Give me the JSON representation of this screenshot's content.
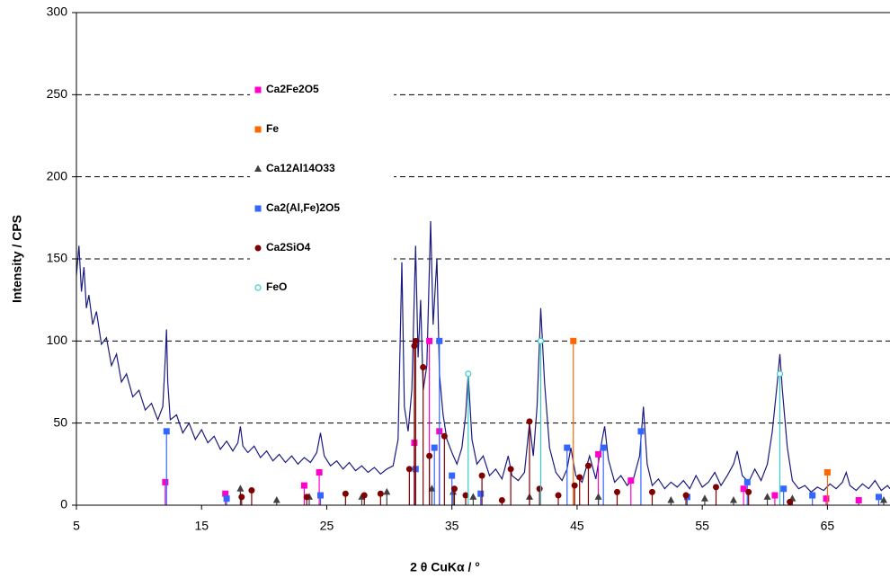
{
  "chart_data": {
    "type": "line",
    "xlabel": "2 θ CuKα / °",
    "ylabel": "Intensity / CPS",
    "xlim": [
      5,
      70
    ],
    "xticks": [
      5,
      15,
      25,
      35,
      45,
      55,
      65
    ],
    "ylim": [
      0,
      300
    ],
    "yticks": [
      0,
      50,
      100,
      150,
      200,
      250,
      300
    ],
    "grid": true,
    "series": [
      {
        "kind": "line",
        "color": "#1a1a80",
        "x": [
          5,
          5.2,
          5.4,
          5.6,
          5.8,
          6,
          6.3,
          6.6,
          7,
          7.4,
          7.8,
          8.2,
          8.6,
          9,
          9.5,
          10,
          10.5,
          11,
          11.5,
          11.9,
          12.1,
          12.2,
          12.3,
          12.5,
          13,
          13.5,
          14,
          14.5,
          15,
          15.5,
          16,
          16.5,
          17,
          17.5,
          17.9,
          18.1,
          18.3,
          18.7,
          19.2,
          19.7,
          20.2,
          20.7,
          21.2,
          21.7,
          22.2,
          22.7,
          23.2,
          23.7,
          24.2,
          24.5,
          24.8,
          25.3,
          25.8,
          26.3,
          26.8,
          27.3,
          27.8,
          28.3,
          28.8,
          29.3,
          29.8,
          30.3,
          30.7,
          31.0,
          31.2,
          31.5,
          31.8,
          32.1,
          32.3,
          32.5,
          32.7,
          33.0,
          33.3,
          33.5,
          33.8,
          34.0,
          34.3,
          34.6,
          35.0,
          35.4,
          35.8,
          36.1,
          36.3,
          36.6,
          37.0,
          37.5,
          38.0,
          38.5,
          39.0,
          39.5,
          39.8,
          40.3,
          40.8,
          41.2,
          41.5,
          41.8,
          42.1,
          42.4,
          42.8,
          43.3,
          43.8,
          44.2,
          44.5,
          44.9,
          45.4,
          46.0,
          46.5,
          47.0,
          47.2,
          47.5,
          48.0,
          48.5,
          49.0,
          49.5,
          50.0,
          50.3,
          50.6,
          51.0,
          51.5,
          52.0,
          52.5,
          53.0,
          53.5,
          54.0,
          54.5,
          55.0,
          55.5,
          56.0,
          56.5,
          57.0,
          57.5,
          57.8,
          58.2,
          58.7,
          59.2,
          59.7,
          60.2,
          60.6,
          61.0,
          61.2,
          61.4,
          61.8,
          62.2,
          62.7,
          63.2,
          63.7,
          64.2,
          64.7,
          65.2,
          65.7,
          66.2,
          66.5,
          66.8,
          67.3,
          67.8,
          68.3,
          68.8,
          69.3,
          69.8,
          70
        ],
        "values": [
          140,
          158,
          130,
          145,
          120,
          128,
          110,
          118,
          98,
          102,
          85,
          92,
          75,
          80,
          66,
          70,
          58,
          62,
          52,
          60,
          90,
          107,
          75,
          52,
          55,
          44,
          50,
          40,
          46,
          38,
          42,
          34,
          39,
          33,
          38,
          48,
          36,
          32,
          36,
          29,
          33,
          27,
          31,
          26,
          30,
          25,
          29,
          26,
          32,
          44,
          30,
          24,
          27,
          22,
          26,
          21,
          24,
          20,
          23,
          19,
          22,
          24,
          40,
          148,
          60,
          45,
          70,
          158,
          90,
          125,
          70,
          85,
          173,
          110,
          150,
          80,
          55,
          40,
          32,
          25,
          35,
          55,
          80,
          40,
          25,
          30,
          18,
          22,
          16,
          30,
          18,
          15,
          20,
          50,
          30,
          60,
          120,
          75,
          35,
          20,
          15,
          22,
          35,
          18,
          14,
          30,
          16,
          40,
          48,
          28,
          14,
          18,
          12,
          16,
          30,
          60,
          25,
          12,
          16,
          10,
          14,
          11,
          15,
          10,
          18,
          11,
          14,
          20,
          12,
          18,
          25,
          33,
          18,
          14,
          22,
          15,
          25,
          45,
          75,
          92,
          70,
          35,
          15,
          10,
          12,
          8,
          11,
          9,
          13,
          10,
          14,
          20,
          12,
          9,
          13,
          10,
          15,
          9,
          12,
          10
        ]
      },
      {
        "kind": "stick",
        "name": "Ca2Fe2O5",
        "color": "#ff00cc",
        "marker": "square",
        "x": [
          12.1,
          16.9,
          23.2,
          24.4,
          32.0,
          33.2,
          34.0,
          46.7,
          49.3,
          58.3,
          60.8,
          64.9,
          67.5
        ],
        "values": [
          14,
          7,
          12,
          20,
          38,
          100,
          45,
          31,
          15,
          10,
          6,
          4,
          3
        ]
      },
      {
        "kind": "stick",
        "name": "Fe",
        "color": "#ff6600",
        "marker": "square",
        "x": [
          44.7,
          65.0
        ],
        "values": [
          100,
          20
        ]
      },
      {
        "kind": "stick",
        "name": "Ca12Al14O33",
        "color": "#404040",
        "marker": "triangle",
        "x": [
          18.1,
          21.0,
          23.6,
          27.8,
          29.8,
          33.4,
          35.1,
          36.7,
          41.2,
          46.7,
          52.5,
          55.2,
          57.5,
          60.2,
          62.2,
          69.5
        ],
        "values": [
          10,
          3,
          5,
          5,
          8,
          10,
          8,
          5,
          5,
          5,
          3,
          4,
          3,
          5,
          4,
          3
        ]
      },
      {
        "kind": "stick",
        "name": "Ca2(Al,Fe)2O5",
        "color": "#3366ff",
        "marker": "square",
        "x": [
          12.2,
          17.0,
          24.5,
          32.1,
          33.6,
          34.0,
          35.0,
          37.3,
          44.2,
          47.1,
          50.1,
          53.8,
          58.6,
          61.5,
          63.8,
          69.1
        ],
        "values": [
          45,
          4,
          6,
          22,
          35,
          100,
          18,
          7,
          35,
          35,
          45,
          5,
          14,
          10,
          6,
          5
        ]
      },
      {
        "kind": "stick",
        "name": "Ca2SiO4",
        "color": "#800000",
        "marker": "circle",
        "x": [
          18.2,
          19.0,
          23.4,
          26.5,
          28.0,
          29.3,
          31.6,
          32.0,
          32.1,
          32.7,
          33.2,
          34.4,
          35.2,
          36.1,
          37.4,
          39.0,
          39.7,
          41.2,
          42.0,
          43.5,
          44.8,
          45.2,
          45.9,
          48.2,
          51.0,
          53.7,
          56.1,
          58.7,
          62.0
        ],
        "values": [
          5,
          9,
          5,
          7,
          6,
          7,
          22,
          97,
          100,
          84,
          30,
          42,
          10,
          6,
          18,
          3,
          22,
          51,
          10,
          6,
          12,
          17,
          24,
          8,
          8,
          6,
          11,
          8,
          2
        ]
      },
      {
        "kind": "stick",
        "name": "FeO",
        "color": "#33cccc",
        "marker": "open-circle",
        "x": [
          36.3,
          42.1,
          61.2
        ],
        "values": [
          80,
          100,
          80
        ]
      }
    ]
  }
}
